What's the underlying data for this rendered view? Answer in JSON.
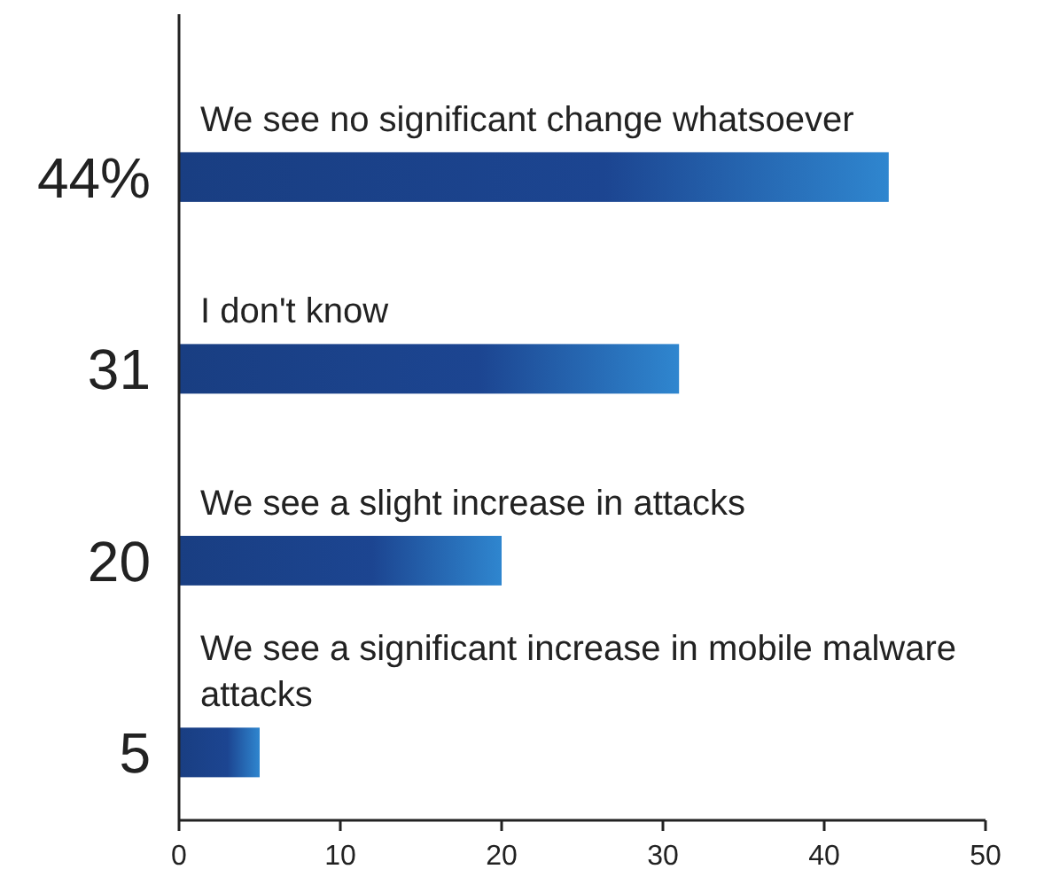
{
  "chart_data": {
    "type": "bar",
    "orientation": "horizontal",
    "categories": [
      "We see no significant change whatsoever",
      "I don't know",
      "We see a slight increase in attacks",
      "We see a significant increase in mobile malware attacks"
    ],
    "values": [
      44,
      31,
      20,
      5
    ],
    "value_labels": [
      "44%",
      "31",
      "20",
      "5"
    ],
    "color": "#1c4591",
    "xlim": [
      0,
      50
    ],
    "xticks": [
      0,
      10,
      20,
      30,
      40,
      50
    ],
    "grid": false
  }
}
